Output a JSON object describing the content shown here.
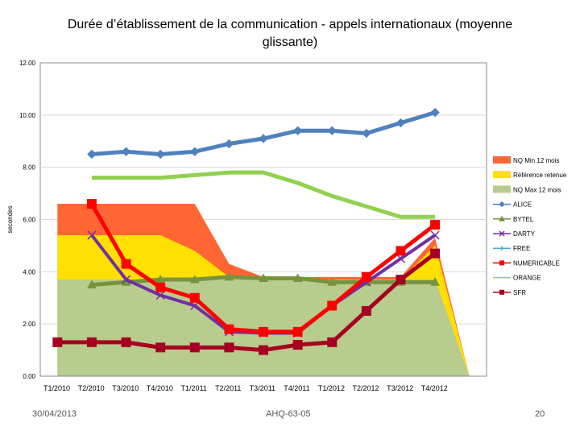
{
  "slide": {
    "footer_date": "30/04/2013",
    "footer_ref": "AHQ-63-05",
    "page_number": "20"
  },
  "chart_data": {
    "type": "line",
    "title": "Durée d’établissement de la communication - appels internationaux (moyenne glissante)",
    "ylabel": "secondes",
    "xlabel": "",
    "ylim": [
      0,
      12
    ],
    "yticks": [
      "0.00",
      "2.00",
      "4.00",
      "6.00",
      "8.00",
      "10.00",
      "12.00"
    ],
    "categories": [
      "T1/2010",
      "T2/2010",
      "T3/2010",
      "T4/2010",
      "T1/2011",
      "T2/2011",
      "T3/2011",
      "T4/2011",
      "T1/2012",
      "T2/2012",
      "T3/2012",
      "T4/2012",
      ""
    ],
    "grid": "horizontal",
    "legend_position": "right",
    "areas": [
      {
        "name": "NQ Min 12 mois",
        "color": "#FF6633",
        "values": [
          6.6,
          6.6,
          6.6,
          6.6,
          6.6,
          4.3,
          3.8,
          3.8,
          3.8,
          3.8,
          3.8,
          5.3,
          0
        ]
      },
      {
        "name": "Référence retenue",
        "color": "#FFE000",
        "values": [
          5.4,
          5.4,
          5.4,
          5.4,
          4.8,
          3.8,
          3.7,
          3.7,
          3.7,
          3.7,
          3.7,
          5.0,
          0
        ]
      },
      {
        "name": "NQ Max 12 mois",
        "color": "#B8CC8E",
        "values": [
          3.7,
          3.7,
          3.7,
          3.7,
          3.7,
          3.7,
          3.7,
          3.7,
          3.7,
          3.7,
          3.7,
          3.7,
          0
        ]
      }
    ],
    "series": [
      {
        "name": "ALICE",
        "color": "#4F81BD",
        "marker": "diamond",
        "values": [
          null,
          8.5,
          8.6,
          8.5,
          8.6,
          8.9,
          9.1,
          9.4,
          9.4,
          9.3,
          9.7,
          10.1,
          null
        ]
      },
      {
        "name": "BYTEL",
        "color": "#77933C",
        "marker": "triangle",
        "values": [
          null,
          3.5,
          3.6,
          3.7,
          3.7,
          3.8,
          3.75,
          3.75,
          3.6,
          3.6,
          3.6,
          3.6,
          null
        ]
      },
      {
        "name": "DARTY",
        "color": "#7030A0",
        "marker": "x",
        "values": [
          null,
          5.4,
          3.7,
          3.1,
          2.7,
          1.7,
          1.65,
          1.65,
          2.7,
          3.6,
          4.5,
          5.4,
          null
        ]
      },
      {
        "name": "FREE",
        "color": "#4BACC6",
        "marker": "plus",
        "values": [
          null,
          null,
          null,
          null,
          null,
          null,
          null,
          null,
          null,
          null,
          null,
          null,
          null
        ]
      },
      {
        "name": "NUMERICABLE",
        "color": "#FF0000",
        "marker": "square",
        "values": [
          null,
          6.6,
          4.3,
          3.4,
          3.0,
          1.8,
          1.7,
          1.7,
          2.7,
          3.8,
          4.8,
          5.8,
          null
        ]
      },
      {
        "name": "ORANGE",
        "color": "#92D050",
        "marker": "none",
        "values": [
          null,
          7.6,
          7.6,
          7.6,
          7.7,
          7.8,
          7.8,
          7.4,
          6.9,
          6.5,
          6.1,
          6.1,
          null
        ]
      },
      {
        "name": "SFR",
        "color": "#A50021",
        "marker": "square",
        "values": [
          1.3,
          1.3,
          1.3,
          1.1,
          1.1,
          1.1,
          1.0,
          1.2,
          1.3,
          2.5,
          3.7,
          4.7,
          null
        ]
      }
    ]
  }
}
